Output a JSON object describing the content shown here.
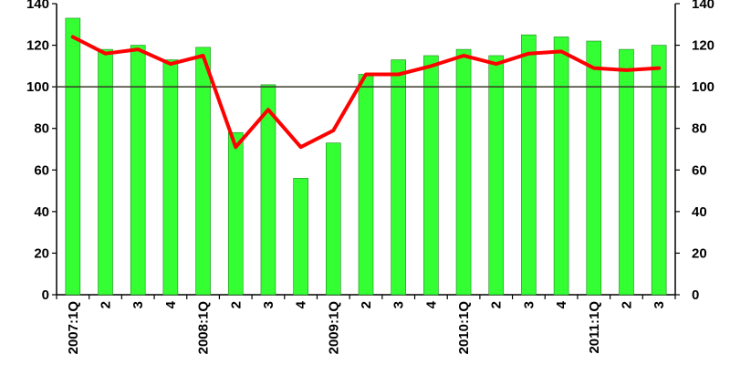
{
  "chart_data": {
    "type": "bar",
    "categories": [
      "2007:1Q",
      "2",
      "3",
      "4",
      "2008:1Q",
      "2",
      "3",
      "4",
      "2009:1Q",
      "2",
      "3",
      "4",
      "2010:1Q",
      "2",
      "3",
      "4",
      "2011:1Q",
      "2",
      "3"
    ],
    "series": [
      {
        "type": "bar",
        "values": [
          133,
          118,
          120,
          113,
          119,
          78,
          101,
          56,
          73,
          106,
          113,
          115,
          118,
          115,
          125,
          124,
          122,
          118,
          120
        ]
      },
      {
        "type": "line",
        "values": [
          124,
          116,
          118,
          111,
          115,
          71,
          89,
          71,
          79,
          106,
          106,
          110,
          115,
          111,
          116,
          117,
          109,
          108,
          109
        ]
      }
    ],
    "reference_line": 100,
    "ylim_left": [
      0,
      140
    ],
    "ylim_right": [
      0,
      140
    ],
    "yticks": [
      0,
      20,
      40,
      60,
      80,
      100,
      120,
      140
    ],
    "colors": {
      "bar": "#33ff33",
      "line": "#ff0000",
      "reference": "#3a3a2a"
    }
  }
}
